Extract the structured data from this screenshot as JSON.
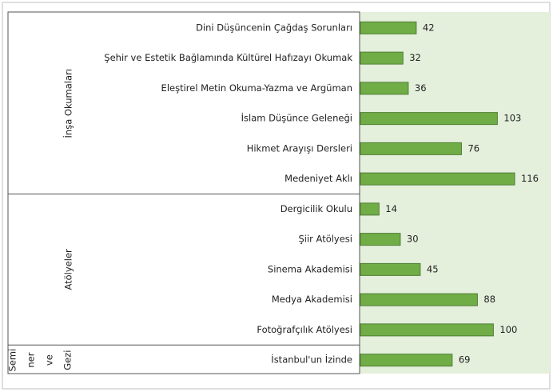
{
  "chart_data": {
    "type": "bar",
    "orientation": "horizontal",
    "color": "#70ad47",
    "groups": [
      {
        "name": "İnşa Okumaları",
        "categories": [
          "Dini Düşüncenin Çağdaş Sorunları",
          "Şehir ve Estetik Bağlamında Kültürel Hafızayı Okumak",
          "Eleştirel Metin Okuma-Yazma ve Argüman",
          "İslam Düşünce Geleneği",
          "Hikmet Arayışı Dersleri",
          "Medeniyet Aklı"
        ],
        "values": [
          42,
          32,
          36,
          103,
          76,
          116
        ]
      },
      {
        "name": "Atölyeler",
        "categories": [
          "Dergicilik Okulu",
          "Şiir Atölyesi",
          "Sinema Akademisi",
          "Medya Akademisi",
          "Fotoğrafçılık Atölyesi"
        ],
        "values": [
          14,
          30,
          45,
          88,
          100
        ]
      },
      {
        "name": [
          "Semi",
          "ner",
          "ve",
          "Gezi"
        ],
        "categories": [
          "İstanbul'un İzinde"
        ],
        "values": [
          69
        ]
      }
    ]
  }
}
